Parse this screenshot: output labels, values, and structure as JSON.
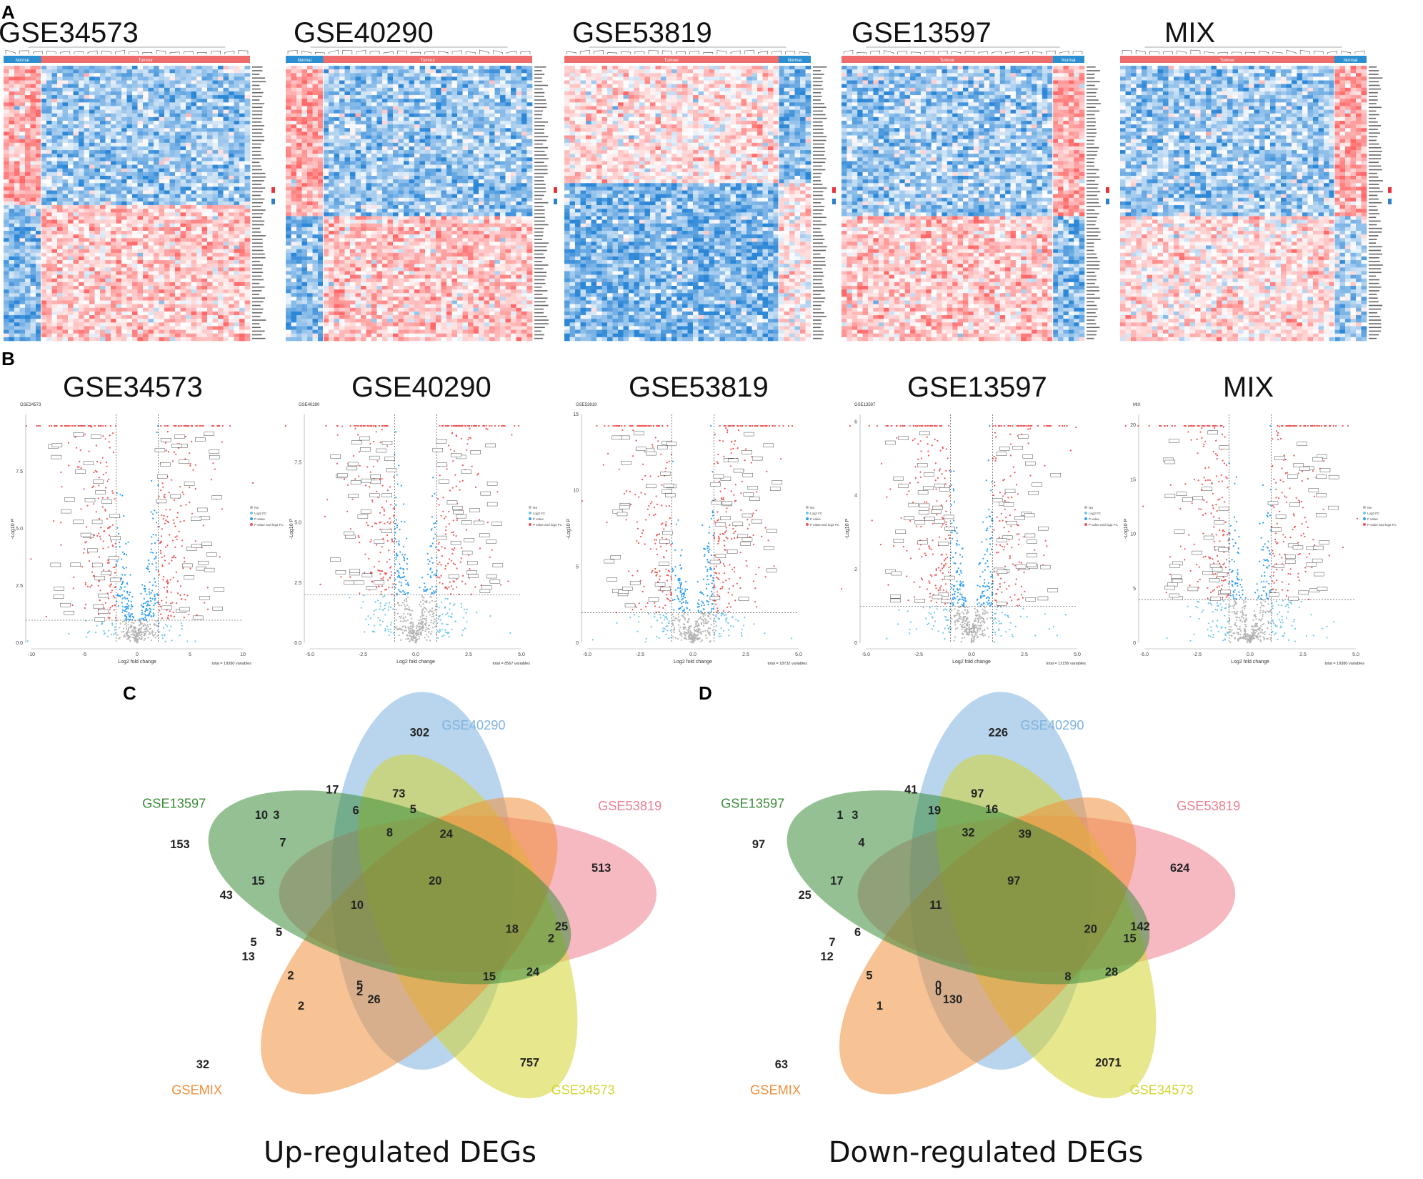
{
  "panels": {
    "a": "A",
    "b": "B",
    "c": "C",
    "d": "D"
  },
  "chart_data": [
    {
      "type": "heatmap",
      "panel": "A",
      "heatmaps": [
        {
          "title": "GSE34573",
          "groups": [
            "Normal",
            "Tumour"
          ],
          "order": "normal-first"
        },
        {
          "title": "GSE40290",
          "groups": [
            "Normal",
            "Tumour"
          ],
          "order": "normal-first"
        },
        {
          "title": "GSE53819",
          "groups": [
            "Tumour",
            "Normal"
          ],
          "order": "tumour-first"
        },
        {
          "title": "GSE13597",
          "groups": [
            "Tumour",
            "Normal"
          ],
          "order": "tumour-first"
        },
        {
          "title": "MIX",
          "groups": [
            "Tumour",
            "Normal"
          ],
          "order": "tumour-first"
        }
      ],
      "colors": {
        "normal": "#2b8fd1",
        "tumour": "#ee6c6c",
        "high": "#e8333a",
        "low": "#2f7fc8",
        "mid": "#ffffff"
      }
    },
    {
      "type": "scatter",
      "panel": "B",
      "subtype": "volcano",
      "xlabel": "Log2 fold change",
      "ylabel": "-Log10 P",
      "legend": [
        "NS",
        "Log2 FC",
        "P value",
        "P value and log2 FC"
      ],
      "plots": [
        {
          "title": "GSE34573",
          "tag": "GSE34573",
          "xlim": [
            -10,
            10
          ],
          "ylim": [
            0,
            10
          ],
          "xticks": [
            "-10",
            "-5",
            "0",
            "5",
            "10"
          ],
          "yticks": [
            "0.0",
            "2.5",
            "5.0",
            "7.5"
          ],
          "fc_cut": 2,
          "p_cut": 1,
          "total": "total = 19380 variables"
        },
        {
          "title": "GSE40290",
          "tag": "GSE40290",
          "xlim": [
            -5,
            5
          ],
          "ylim": [
            0,
            9.5
          ],
          "xticks": [
            "-5.0",
            "-2.5",
            "0.0",
            "2.5",
            "5.0"
          ],
          "yticks": [
            "0.0",
            "2.5",
            "5.0",
            "7.5"
          ],
          "fc_cut": 1,
          "p_cut": 2,
          "total": "total = 8567 variables"
        },
        {
          "title": "GSE53819",
          "tag": "GSE53819",
          "xlim": [
            -5,
            5
          ],
          "ylim": [
            0,
            15
          ],
          "xticks": [
            "-5.0",
            "-2.5",
            "0.0",
            "2.5",
            "5.0"
          ],
          "yticks": [
            "0",
            "5",
            "10",
            "15"
          ],
          "fc_cut": 1,
          "p_cut": 2,
          "total": "total = 18732 variables"
        },
        {
          "title": "GSE13597",
          "tag": "GSE13597",
          "xlim": [
            -5,
            5
          ],
          "ylim": [
            0,
            6.2
          ],
          "xticks": [
            "-5.0",
            "-2.5",
            "0.0",
            "2.5",
            "5.0"
          ],
          "yticks": [
            "0",
            "2",
            "4",
            "6"
          ],
          "fc_cut": 1,
          "p_cut": 1,
          "total": "total = 12156 variables"
        },
        {
          "title": "MIX",
          "tag": "MIX",
          "xlim": [
            -5,
            5
          ],
          "ylim": [
            0,
            21
          ],
          "xticks": [
            "-5.0",
            "-2.5",
            "0.0",
            "2.5",
            "5.0"
          ],
          "yticks": [
            "0",
            "5",
            "10",
            "15",
            "20"
          ],
          "fc_cut": 1,
          "p_cut": 4,
          "total": "total = 19380 variables"
        }
      ],
      "colors": {
        "ns": "#b3b3b3",
        "fc": "#43a047",
        "p": "#2a9df4",
        "both": "#ee5555"
      }
    },
    {
      "type": "venn",
      "panel": "C",
      "caption": "Up-regulated DEGs",
      "sets": [
        {
          "name": "GSE40290",
          "color": "#7fb3e0"
        },
        {
          "name": "GSE53819",
          "color": "#ee8090"
        },
        {
          "name": "GSE34573",
          "color": "#d4d430"
        },
        {
          "name": "GSEMIX",
          "color": "#f0903c"
        },
        {
          "name": "GSE13597",
          "color": "#3c8c3c"
        }
      ],
      "region_values": [
        "302",
        "513",
        "757",
        "32",
        "153",
        "17",
        "73",
        "10",
        "3",
        "6",
        "5",
        "8",
        "24",
        "7",
        "15",
        "43",
        "20",
        "10",
        "25",
        "2",
        "18",
        "5",
        "5",
        "13",
        "24",
        "15",
        "5",
        "2",
        "2",
        "26",
        "2"
      ]
    },
    {
      "type": "venn",
      "panel": "D",
      "caption": "Down-regulated DEGs",
      "sets": [
        {
          "name": "GSE40290",
          "color": "#7fb3e0"
        },
        {
          "name": "GSE53819",
          "color": "#ee8090"
        },
        {
          "name": "GSE34573",
          "color": "#d4d430"
        },
        {
          "name": "GSEMIX",
          "color": "#f0903c"
        },
        {
          "name": "GSE13597",
          "color": "#3c8c3c"
        }
      ],
      "region_values": [
        "226",
        "624",
        "2071",
        "63",
        "97",
        "41",
        "97",
        "1",
        "3",
        "19",
        "16",
        "32",
        "39",
        "4",
        "17",
        "25",
        "97",
        "11",
        "142",
        "15",
        "20",
        "6",
        "7",
        "12",
        "28",
        "8",
        "0",
        "1",
        "0",
        "130",
        "5"
      ]
    }
  ]
}
